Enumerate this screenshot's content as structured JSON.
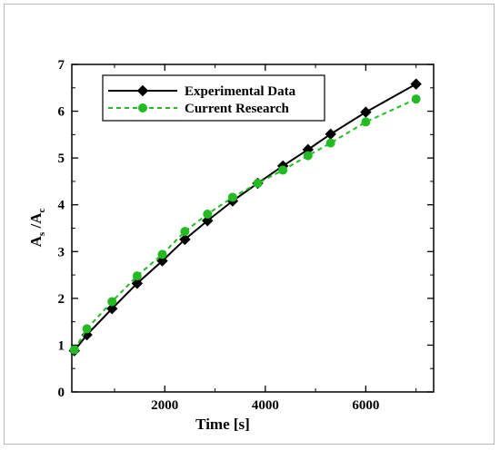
{
  "chart_data": {
    "type": "line",
    "title": "",
    "xlabel": "Time [s]",
    "ylabel": {
      "main": "A",
      "sub1": "s",
      "sep": " /A",
      "sub2": "c"
    },
    "xlim": [
      150,
      7350
    ],
    "ylim": [
      0,
      7
    ],
    "xticks": [
      2000,
      4000,
      6000
    ],
    "yticks": [
      0,
      1,
      2,
      3,
      4,
      5,
      6,
      7
    ],
    "grid": false,
    "legend_position": "top-left",
    "series": [
      {
        "name": "Experimental Data",
        "color": "#000000",
        "line_style": "solid",
        "marker": "diamond",
        "x": [
          200,
          450,
          950,
          1450,
          1950,
          2400,
          2850,
          3350,
          3850,
          4350,
          4850,
          5300,
          6000,
          7000
        ],
        "y": [
          0.88,
          1.22,
          1.78,
          2.32,
          2.8,
          3.26,
          3.66,
          4.08,
          4.46,
          4.83,
          5.18,
          5.51,
          5.98,
          6.58
        ]
      },
      {
        "name": "Current Research",
        "color": "#22bb22",
        "line_style": "dashed",
        "marker": "circle",
        "x": [
          200,
          450,
          950,
          1450,
          1950,
          2400,
          2850,
          3350,
          3850,
          4350,
          4850,
          5300,
          6000,
          7000
        ],
        "y": [
          0.9,
          1.35,
          1.93,
          2.48,
          2.94,
          3.43,
          3.8,
          4.16,
          4.46,
          4.74,
          5.05,
          5.32,
          5.77,
          6.26
        ]
      }
    ]
  }
}
